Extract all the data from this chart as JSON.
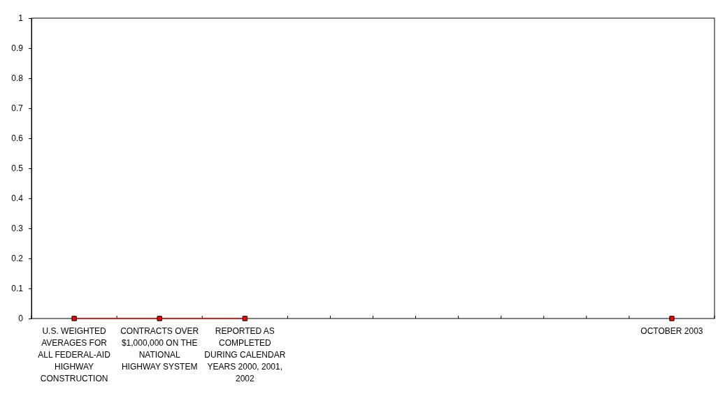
{
  "chart_data": {
    "type": "line",
    "categories": [
      "U.S.  WEIGHTED AVERAGES  FOR ALL  FEDERAL-AID HIGHWAY CONSTRUCTION",
      "CONTRACTS OVER  $1,000,000 ON THE NATIONAL HIGHWAY SYSTEM",
      "REPORTED  AS COMPLETED DURING CALENDAR YEARS  2000, 2001,  2002",
      null,
      null,
      null,
      null,
      "OCTOBER 2003"
    ],
    "series": [
      {
        "color": "#ff0000",
        "values": [
          0,
          0,
          0,
          null,
          null,
          null,
          null,
          0
        ]
      }
    ],
    "ylim": [
      0,
      1
    ],
    "yticks": [
      0,
      0.1,
      0.2,
      0.3,
      0.4,
      0.5,
      0.6,
      0.7,
      0.8,
      0.9,
      1
    ],
    "marker": "square",
    "grid": false
  }
}
